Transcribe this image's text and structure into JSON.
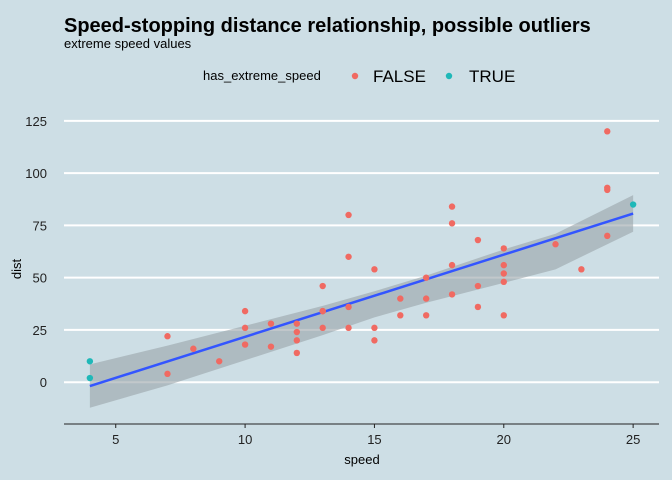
{
  "colors": {
    "background": "#cddee5",
    "gridline": "#ffffff",
    "false_points": "#f06a62",
    "true_points": "#1fb8b8",
    "fit_line": "#3355ff",
    "confidence_band": "#9aa3a8"
  },
  "chart_data": {
    "type": "scatter",
    "title": "Speed-stopping distance relationship, possible outliers",
    "subtitle": "extreme speed values",
    "xlabel": "speed",
    "ylabel": "dist",
    "xlim": [
      3.0,
      26.0
    ],
    "ylim": [
      -20,
      135
    ],
    "xticks": [
      5,
      10,
      15,
      20,
      25
    ],
    "yticks": [
      0,
      25,
      50,
      75,
      100,
      125
    ],
    "grid": "horizontal major lines only",
    "legend": {
      "position": "top",
      "title": "has_extreme_speed",
      "entries": [
        "FALSE",
        "TRUE"
      ]
    },
    "series": [
      {
        "name": "FALSE",
        "color": "#f06a62",
        "points": [
          [
            7,
            4
          ],
          [
            7,
            22
          ],
          [
            8,
            16
          ],
          [
            9,
            10
          ],
          [
            10,
            18
          ],
          [
            10,
            26
          ],
          [
            10,
            34
          ],
          [
            11,
            17
          ],
          [
            11,
            28
          ],
          [
            12,
            14
          ],
          [
            12,
            20
          ],
          [
            12,
            24
          ],
          [
            12,
            28
          ],
          [
            13,
            26
          ],
          [
            13,
            34
          ],
          [
            13,
            34
          ],
          [
            13,
            46
          ],
          [
            14,
            26
          ],
          [
            14,
            36
          ],
          [
            14,
            60
          ],
          [
            14,
            80
          ],
          [
            15,
            20
          ],
          [
            15,
            26
          ],
          [
            15,
            54
          ],
          [
            16,
            32
          ],
          [
            16,
            40
          ],
          [
            17,
            32
          ],
          [
            17,
            40
          ],
          [
            17,
            50
          ],
          [
            18,
            42
          ],
          [
            18,
            56
          ],
          [
            18,
            76
          ],
          [
            18,
            84
          ],
          [
            19,
            36
          ],
          [
            19,
            46
          ],
          [
            19,
            68
          ],
          [
            20,
            32
          ],
          [
            20,
            48
          ],
          [
            20,
            52
          ],
          [
            20,
            56
          ],
          [
            20,
            64
          ],
          [
            22,
            66
          ],
          [
            23,
            54
          ],
          [
            24,
            70
          ],
          [
            24,
            92
          ],
          [
            24,
            93
          ],
          [
            24,
            120
          ]
        ]
      },
      {
        "name": "TRUE",
        "color": "#1fb8b8",
        "points": [
          [
            4,
            2
          ],
          [
            4,
            10
          ],
          [
            25,
            85
          ]
        ]
      }
    ],
    "fit": {
      "method": "linear",
      "intercept": -17.58,
      "slope": 3.93,
      "band": [
        [
          4,
          -12.2,
          8.5
        ],
        [
          7,
          -1.5,
          17.5
        ],
        [
          10,
          10.5,
          27.0
        ],
        [
          13,
          22.5,
          36.5
        ],
        [
          15,
          31.0,
          43.5
        ],
        [
          17,
          38.0,
          51.0
        ],
        [
          20,
          47.5,
          63.5
        ],
        [
          22,
          54.0,
          71.0
        ],
        [
          25,
          72.0,
          89.5
        ]
      ]
    }
  }
}
